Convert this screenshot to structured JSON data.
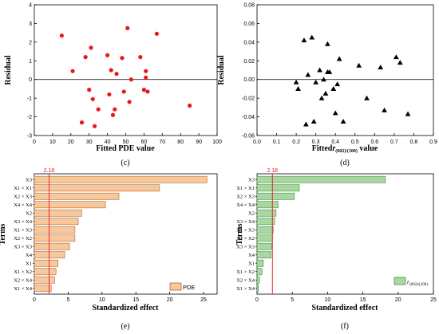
{
  "chart_data": [
    {
      "type": "scatter",
      "panel_label": "(c)",
      "ylabel": "Residual",
      "xlabel": "Fitted PDE value",
      "xlim": [
        0,
        100
      ],
      "ylim": [
        -3,
        4
      ],
      "xticks": [
        "0",
        "10",
        "20",
        "30",
        "40",
        "50",
        "60",
        "70",
        "80",
        "90",
        "100"
      ],
      "yticks": [
        "-3",
        "-2",
        "-1",
        "0",
        "1",
        "2",
        "3",
        "4"
      ],
      "marker": "circle",
      "color": "#e8171c",
      "points": [
        {
          "x": 15,
          "y": 2.35
        },
        {
          "x": 21,
          "y": 0.45
        },
        {
          "x": 26,
          "y": -2.3
        },
        {
          "x": 28,
          "y": 1.2
        },
        {
          "x": 30,
          "y": -0.55
        },
        {
          "x": 31,
          "y": 1.7
        },
        {
          "x": 32,
          "y": -1.05
        },
        {
          "x": 33,
          "y": -2.5
        },
        {
          "x": 35,
          "y": -1.6
        },
        {
          "x": 40,
          "y": 1.3
        },
        {
          "x": 41,
          "y": -0.8
        },
        {
          "x": 42,
          "y": 0.5
        },
        {
          "x": 43,
          "y": -1.9
        },
        {
          "x": 44,
          "y": -1.6
        },
        {
          "x": 45,
          "y": 0.3
        },
        {
          "x": 48,
          "y": 1.15
        },
        {
          "x": 49,
          "y": -0.65
        },
        {
          "x": 51,
          "y": 2.75
        },
        {
          "x": 52,
          "y": -1.2
        },
        {
          "x": 53,
          "y": 0.0
        },
        {
          "x": 58,
          "y": 1.2
        },
        {
          "x": 60,
          "y": -0.55
        },
        {
          "x": 61,
          "y": 0.45
        },
        {
          "x": 61,
          "y": 0.1
        },
        {
          "x": 62,
          "y": -0.65
        },
        {
          "x": 67,
          "y": 2.45
        },
        {
          "x": 85,
          "y": -1.4
        }
      ]
    },
    {
      "type": "scatter",
      "panel_label": "(d)",
      "ylabel": "Residual",
      "xlabel_parts": [
        "Fitted",
        "r",
        "(002)/(100)",
        " value"
      ],
      "xlim": [
        0,
        0.9
      ],
      "ylim": [
        -0.06,
        0.08
      ],
      "xticks": [
        "0.0",
        "0.1",
        "0.2",
        "0.3",
        "0.4",
        "0.5",
        "0.6",
        "0.7",
        "0.8",
        "0.9"
      ],
      "yticks": [
        "-0.06",
        "-0.04",
        "-0.02",
        "0.00",
        "0.02",
        "0.04",
        "0.06",
        "0.08"
      ],
      "marker": "triangle",
      "color": "#000000",
      "points": [
        {
          "x": 0.2,
          "y": -0.003
        },
        {
          "x": 0.21,
          "y": -0.01
        },
        {
          "x": 0.24,
          "y": 0.042
        },
        {
          "x": 0.25,
          "y": -0.048
        },
        {
          "x": 0.26,
          "y": 0.005
        },
        {
          "x": 0.28,
          "y": 0.045
        },
        {
          "x": 0.29,
          "y": -0.045
        },
        {
          "x": 0.3,
          "y": -0.003
        },
        {
          "x": 0.32,
          "y": 0.01
        },
        {
          "x": 0.33,
          "y": -0.02
        },
        {
          "x": 0.34,
          "y": 0.0
        },
        {
          "x": 0.35,
          "y": -0.015
        },
        {
          "x": 0.36,
          "y": 0.008
        },
        {
          "x": 0.36,
          "y": 0.038
        },
        {
          "x": 0.37,
          "y": 0.008
        },
        {
          "x": 0.39,
          "y": -0.01
        },
        {
          "x": 0.4,
          "y": -0.036
        },
        {
          "x": 0.41,
          "y": -0.005
        },
        {
          "x": 0.42,
          "y": 0.022
        },
        {
          "x": 0.44,
          "y": -0.045
        },
        {
          "x": 0.52,
          "y": 0.015
        },
        {
          "x": 0.56,
          "y": -0.02
        },
        {
          "x": 0.63,
          "y": 0.013
        },
        {
          "x": 0.65,
          "y": -0.033
        },
        {
          "x": 0.71,
          "y": 0.024
        },
        {
          "x": 0.73,
          "y": 0.018
        },
        {
          "x": 0.77,
          "y": -0.037
        }
      ]
    },
    {
      "type": "bar",
      "orientation": "horizontal",
      "panel_label": "(e)",
      "ylabel": "Terms",
      "xlabel": "Standardized effect",
      "xlim": [
        0,
        27
      ],
      "xticks": [
        "0",
        "5",
        "10",
        "15",
        "20",
        "25"
      ],
      "threshold": 2.18,
      "threshold_label": "2.18",
      "threshold_color": "#e8171c",
      "bar_color": "#f8c79a",
      "bar_edge": "#a86a3a",
      "legend": "PDE",
      "categories": [
        "X3",
        "X1 × X1",
        "X2 × X3",
        "X4 × X4",
        "X2",
        "X3 × X4",
        "X1 × X3",
        "X2 × X2",
        "X3 × X3",
        "X4",
        "X1",
        "X1 × X2",
        "X2 × X4",
        "X1 × X4"
      ],
      "values": [
        25.5,
        18.5,
        12.5,
        10.5,
        7.0,
        6.5,
        6.0,
        6.0,
        5.2,
        4.5,
        3.5,
        3.2,
        3.0,
        2.5
      ]
    },
    {
      "type": "bar",
      "orientation": "horizontal",
      "panel_label": "(f)",
      "ylabel": "Terms",
      "xlabel": "Standardized effect",
      "xlim": [
        0,
        25
      ],
      "xticks": [
        "0",
        "5",
        "10",
        "15",
        "20",
        "25"
      ],
      "threshold": 2.18,
      "threshold_label": "2.18",
      "threshold_color": "#e8171c",
      "bar_color": "#a8d8a0",
      "bar_edge": "#4a8a45",
      "legend_parts": [
        "r",
        "(002)/(100)"
      ],
      "categories": [
        "X3",
        "X1 × X1",
        "X2 × X3",
        "X4 × X4",
        "X2",
        "X3 × X4",
        "X1 × X3",
        "X2 × X2",
        "X3 × X3",
        "X4",
        "X1",
        "X1 × X2",
        "X2 × X4",
        "X1 × X4"
      ],
      "values": [
        18.2,
        6.0,
        5.3,
        3.0,
        2.7,
        2.5,
        2.3,
        2.2,
        2.1,
        2.0,
        0.9,
        0.7,
        0.35,
        0.2
      ]
    }
  ]
}
